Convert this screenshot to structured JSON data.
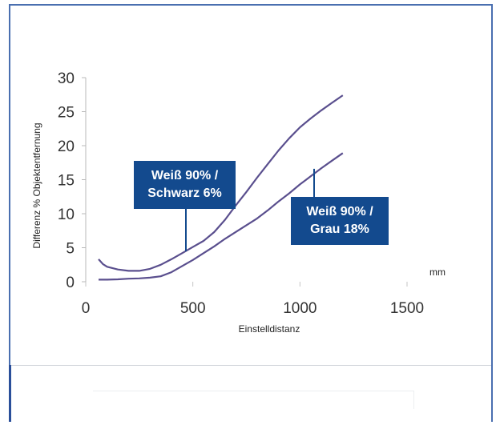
{
  "chart_data": {
    "type": "line",
    "xlabel": "Einstelldistanz",
    "ylabel": "Differenz % Objektentfernung",
    "x_unit": "mm",
    "xlim": [
      0,
      1500
    ],
    "ylim": [
      0,
      30
    ],
    "x_ticks": [
      "0",
      "500",
      "1000",
      "1500"
    ],
    "y_ticks": [
      "0",
      "5",
      "10",
      "15",
      "20",
      "25",
      "30"
    ],
    "grid": false,
    "series": [
      {
        "name": "Weiß 90% / Schwarz 6%",
        "color": "#5a4f8e",
        "x": [
          60,
          80,
          100,
          150,
          200,
          250,
          300,
          350,
          400,
          450,
          500,
          550,
          600,
          650,
          700,
          750,
          800,
          850,
          900,
          950,
          1000,
          1050,
          1100,
          1150,
          1200
        ],
        "y": [
          3.3,
          2.6,
          2.2,
          1.8,
          1.6,
          1.6,
          1.9,
          2.5,
          3.3,
          4.2,
          5.1,
          6.0,
          7.3,
          9.1,
          11.2,
          13.2,
          15.3,
          17.3,
          19.3,
          21.1,
          22.7,
          24.0,
          25.2,
          26.3,
          27.4
        ]
      },
      {
        "name": "Weiß 90% / Grau 18%",
        "color": "#5a4f8e",
        "x": [
          60,
          100,
          150,
          200,
          250,
          300,
          350,
          400,
          450,
          500,
          550,
          600,
          650,
          700,
          750,
          800,
          850,
          900,
          950,
          1000,
          1050,
          1100,
          1150,
          1200
        ],
        "y": [
          0.3,
          0.3,
          0.35,
          0.45,
          0.5,
          0.6,
          0.8,
          1.4,
          2.3,
          3.2,
          4.2,
          5.2,
          6.3,
          7.3,
          8.3,
          9.3,
          10.5,
          11.8,
          13.0,
          14.3,
          15.5,
          16.7,
          17.8,
          18.9
        ]
      }
    ],
    "annotations": [
      {
        "series": 0,
        "text_lines": [
          "Weiß 90% /",
          "Schwarz 6%"
        ],
        "point_x": 470,
        "point_y": 4.5
      },
      {
        "series": 1,
        "text_lines": [
          "Weiß 90% /",
          "Grau 18%"
        ],
        "point_x": 1075,
        "point_y": 16.6
      }
    ],
    "callout_color": "#134a8e"
  }
}
